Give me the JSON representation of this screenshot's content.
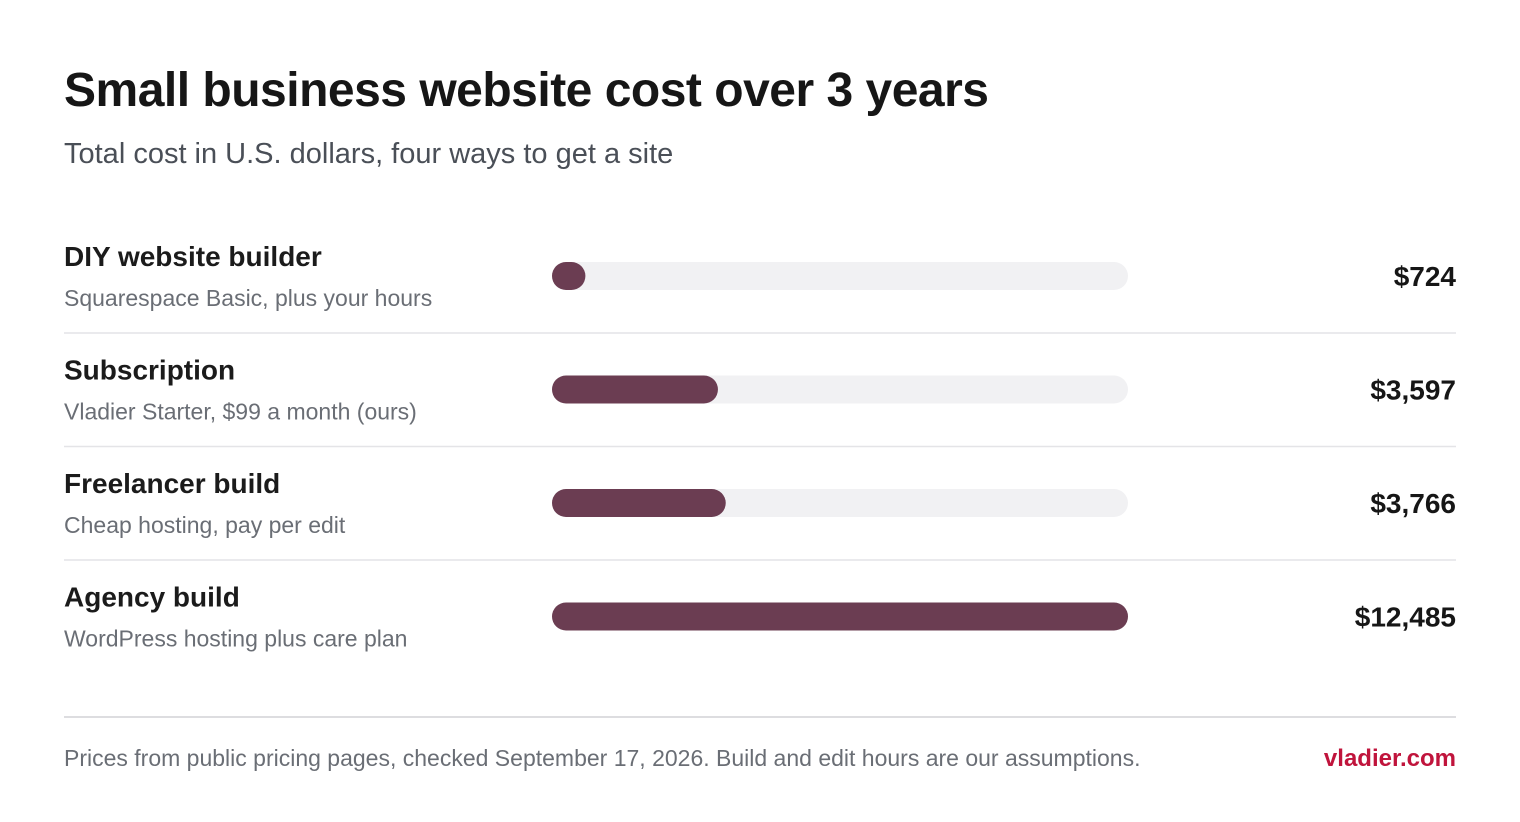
{
  "chart_data": {
    "type": "bar",
    "title": "Small business website cost over 3 years",
    "subtitle": "Total cost in U.S. dollars, four ways to get a site",
    "categories": [
      "DIY website builder",
      "Subscription",
      "Freelancer build",
      "Agency build"
    ],
    "descriptions": [
      "Squarespace Basic, plus your hours",
      "Vladier Starter, $99 a month (ours)",
      "Cheap hosting, pay per edit",
      "WordPress hosting plus care plan"
    ],
    "values": [
      724,
      3597,
      3766,
      12485
    ],
    "value_labels": [
      "$724",
      "$3,597",
      "$3,766",
      "$12,485"
    ],
    "xlim": [
      0,
      12485
    ],
    "color": "#6b3d52",
    "track_color": "#f1f1f3",
    "note": "Prices from public pricing pages, checked September 17, 2026. Build and edit hours are our assumptions.",
    "source": "vladier.com",
    "source_color": "#c0143c"
  }
}
